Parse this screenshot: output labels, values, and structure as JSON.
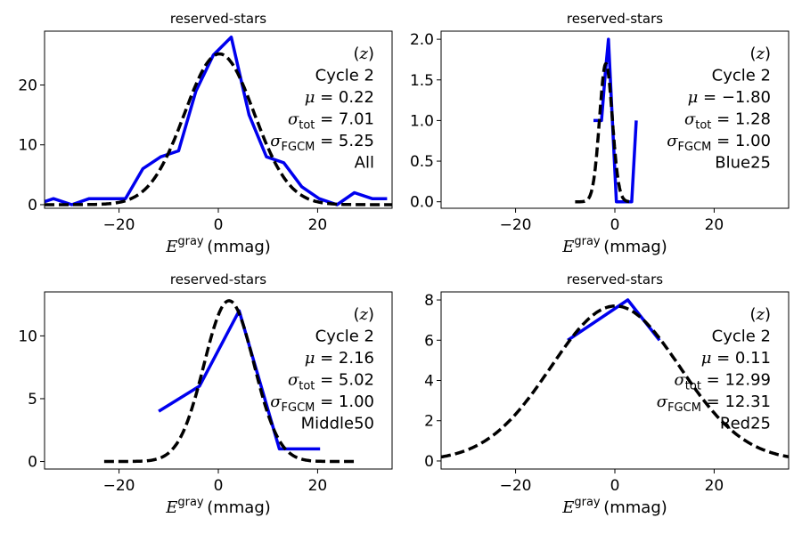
{
  "chart_data": [
    {
      "type": "line",
      "title": "reserved-stars",
      "xlabel": {
        "main": "E",
        "sup": "gray",
        "unit": "(mmag)"
      },
      "xlim": [
        -35,
        35
      ],
      "ylim": [
        -0.6,
        29
      ],
      "xticks": [
        -20,
        0,
        20
      ],
      "yticks": [
        0,
        10,
        20
      ],
      "ytick_labels": [
        "0",
        "10",
        "20"
      ],
      "annotation": {
        "band": "(z)",
        "cycle": "Cycle 2",
        "mu": "0.22",
        "sigma_tot": "7.01",
        "sigma_fgcm": "5.25",
        "label": "All"
      },
      "series": [
        {
          "style": "solid",
          "color": "#0000ee",
          "x": [
            -35,
            -33.2,
            -29.5,
            -26,
            -22.3,
            -18.7,
            -15.2,
            -11.6,
            -8,
            -4.5,
            -1,
            2.6,
            6.2,
            9.7,
            13.2,
            16.8,
            20.3,
            23.9,
            27.4,
            31,
            34
          ],
          "y": [
            0.5,
            1,
            0,
            1,
            1,
            1,
            6,
            8,
            9,
            19,
            25,
            28,
            15,
            8,
            7,
            3,
            1,
            0,
            2,
            1,
            1
          ]
        },
        {
          "style": "dashed",
          "color": "#000000",
          "curve": "gaussian",
          "amplitude": 25.2,
          "mean": 0.22,
          "sigma": 7.01
        }
      ]
    },
    {
      "type": "line",
      "title": "reserved-stars",
      "xlabel": {
        "main": "E",
        "sup": "gray",
        "unit": "(mmag)"
      },
      "xlim": [
        -35,
        35
      ],
      "ylim": [
        -0.08,
        2.1
      ],
      "xticks": [
        -20,
        0,
        20
      ],
      "yticks": [
        0,
        0.5,
        1.0,
        1.5,
        2.0
      ],
      "ytick_labels": [
        "0.0",
        "0.5",
        "1.0",
        "1.5",
        "2.0"
      ],
      "annotation": {
        "band": "(z)",
        "cycle": "Cycle 2",
        "mu": "−1.80",
        "sigma_tot": "1.28",
        "sigma_fgcm": "1.00",
        "label": "Blue25"
      },
      "series": [
        {
          "style": "solid",
          "color": "#0000ee",
          "x": [
            -4.3,
            -2.7,
            -1.9,
            -1.3,
            -0.5,
            0.3,
            2.9,
            3.4,
            4.3
          ],
          "y": [
            1,
            1,
            1.6,
            2,
            1.0,
            0,
            0,
            0,
            1
          ]
        },
        {
          "style": "dashed",
          "color": "#000000",
          "curve": "gaussian",
          "amplitude": 1.7,
          "mean": -1.8,
          "sigma": 1.28,
          "range": [
            -8,
            3.5
          ]
        }
      ]
    },
    {
      "type": "line",
      "title": "reserved-stars",
      "xlabel": {
        "main": "E",
        "sup": "gray",
        "unit": "(mmag)"
      },
      "xlim": [
        -35,
        35
      ],
      "ylim": [
        -0.6,
        13.5
      ],
      "xticks": [
        -20,
        0,
        20
      ],
      "yticks": [
        0,
        5,
        10
      ],
      "ytick_labels": [
        "0",
        "5",
        "10"
      ],
      "annotation": {
        "band": "(z)",
        "cycle": "Cycle 2",
        "mu": "2.16",
        "sigma_tot": "5.02",
        "sigma_fgcm": "1.00",
        "label": "Middle50"
      },
      "series": [
        {
          "style": "solid",
          "color": "#0000ee",
          "x": [
            -12,
            -3.8,
            4.2,
            12.3,
            20.5
          ],
          "y": [
            4,
            6,
            12,
            1,
            1
          ]
        },
        {
          "style": "dashed",
          "color": "#000000",
          "curve": "gaussian",
          "amplitude": 12.8,
          "mean": 2.16,
          "sigma": 5.02,
          "range": [
            -23,
            27.5
          ]
        }
      ]
    },
    {
      "type": "line",
      "title": "reserved-stars",
      "xlabel": {
        "main": "E",
        "sup": "gray",
        "unit": "(mmag)"
      },
      "xlim": [
        -35,
        35
      ],
      "ylim": [
        -0.4,
        8.4
      ],
      "xticks": [
        -20,
        0,
        20
      ],
      "yticks": [
        0,
        2,
        4,
        6,
        8
      ],
      "ytick_labels": [
        "0",
        "2",
        "4",
        "6",
        "8"
      ],
      "annotation": {
        "band": "(z)",
        "cycle": "Cycle 2",
        "mu": "0.11",
        "sigma_tot": "12.99",
        "sigma_fgcm": "12.31",
        "label": "Red25"
      },
      "series": [
        {
          "style": "solid",
          "color": "#0000ee",
          "x": [
            -9.5,
            2.6,
            9
          ],
          "y": [
            6,
            8,
            6
          ]
        },
        {
          "style": "dashed",
          "color": "#000000",
          "curve": "gaussian",
          "amplitude": 7.7,
          "mean": 0.11,
          "sigma": 12.99
        }
      ]
    }
  ]
}
